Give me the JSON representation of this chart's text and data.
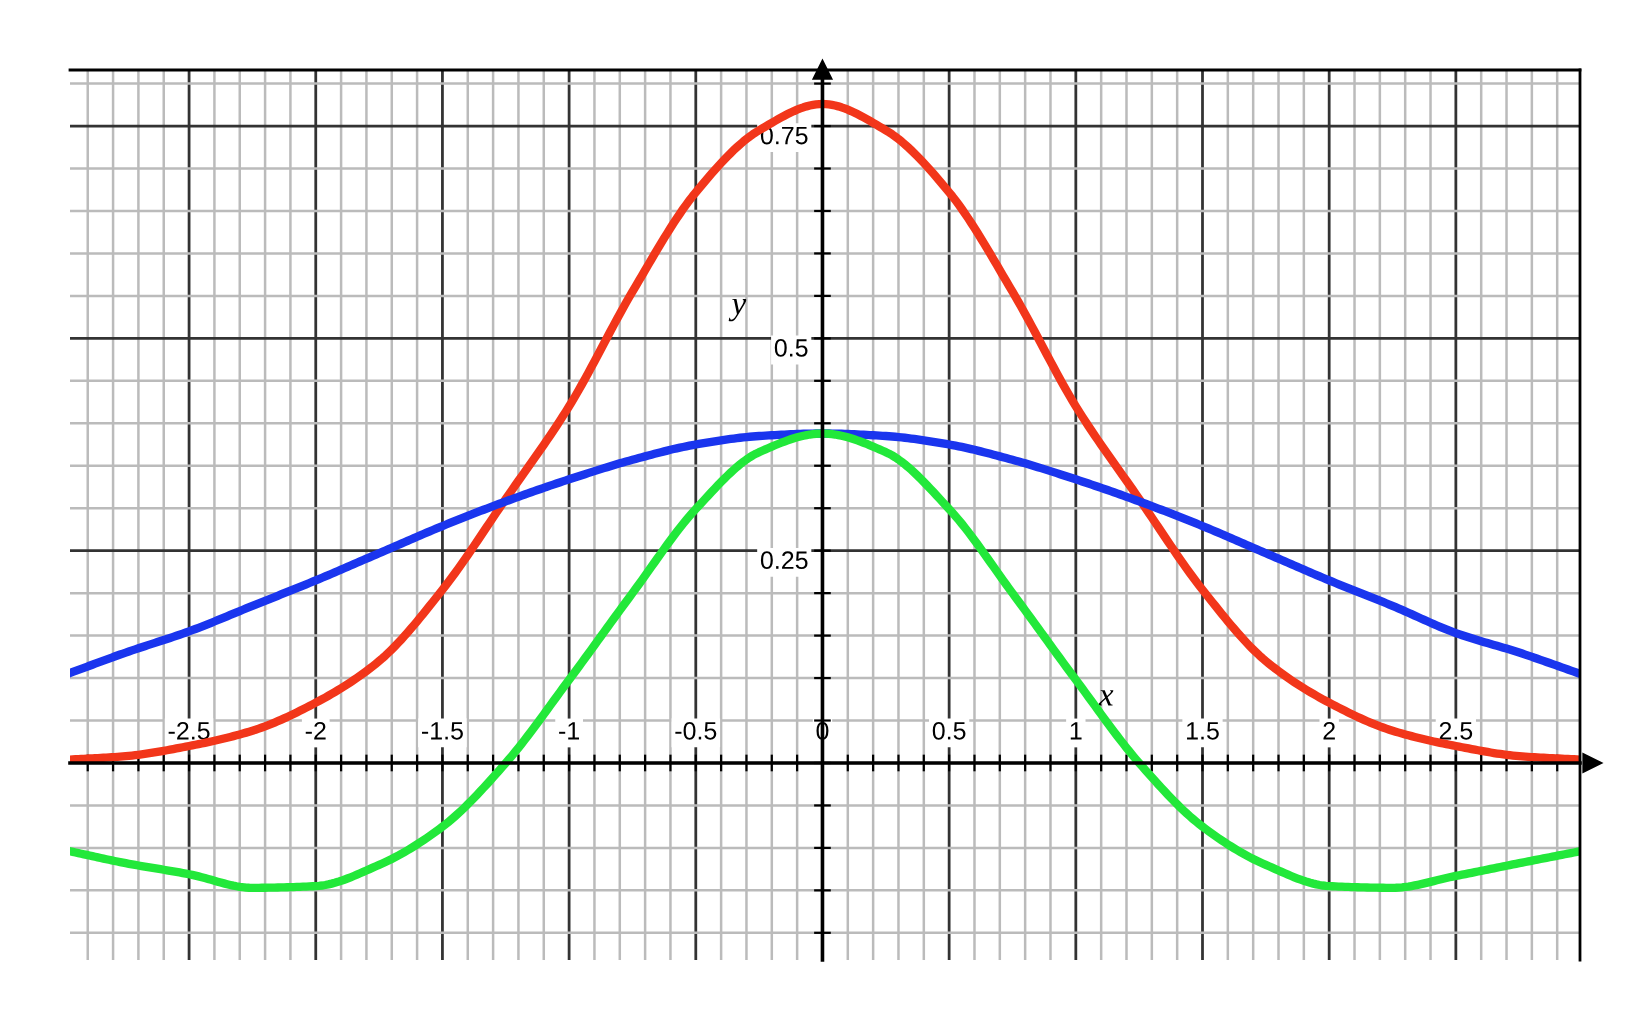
{
  "chart_data": {
    "type": "line",
    "xlabel": "x",
    "ylabel": "y",
    "x": [
      -2.97,
      -2.75,
      -2.5,
      -2.25,
      -2,
      -1.75,
      -1.5,
      -1.25,
      -1,
      -0.75,
      -0.5,
      -0.25,
      0,
      0.25,
      0.5,
      0.75,
      1,
      1.25,
      1.5,
      1.75,
      2,
      2.25,
      2.5,
      2.75,
      2.99
    ],
    "series": [
      {
        "color": "#f2361a",
        "values": [
          0.004,
          0.008,
          0.02,
          0.038,
          0.071,
          0.12,
          0.204,
          0.311,
          0.42,
          0.555,
          0.672,
          0.745,
          0.776,
          0.745,
          0.672,
          0.555,
          0.42,
          0.311,
          0.204,
          0.12,
          0.071,
          0.038,
          0.02,
          0.008,
          0.004
        ]
      },
      {
        "color": "#1a35ee",
        "values": [
          0.106,
          0.13,
          0.155,
          0.185,
          0.215,
          0.247,
          0.279,
          0.308,
          0.334,
          0.357,
          0.375,
          0.385,
          0.388,
          0.385,
          0.375,
          0.357,
          0.334,
          0.308,
          0.279,
          0.247,
          0.215,
          0.185,
          0.153,
          0.13,
          0.105
        ]
      },
      {
        "color": "#22e83a",
        "values": [
          -0.104,
          -0.118,
          -0.131,
          -0.147,
          -0.145,
          -0.12,
          -0.075,
          0,
          0.098,
          0.2,
          0.299,
          0.366,
          0.388,
          0.366,
          0.299,
          0.2,
          0.098,
          0,
          -0.075,
          -0.12,
          -0.145,
          -0.147,
          -0.133,
          -0.118,
          -0.104
        ]
      }
    ],
    "xlim": [
      -2.97,
      2.99
    ],
    "ylim": [
      -0.232,
      0.816
    ],
    "xticks": [
      {
        "value": -2.9,
        "label": null
      },
      {
        "value": -2.8,
        "label": null
      },
      {
        "value": -2.7,
        "label": null
      },
      {
        "value": -2.6,
        "label": null
      },
      -2.5,
      {
        "value": -2.4,
        "label": null
      },
      {
        "value": -2.3,
        "label": null
      },
      {
        "value": -2.2,
        "label": null
      },
      {
        "value": -2.1,
        "label": null
      },
      -2,
      {
        "value": -1.9,
        "label": null
      },
      {
        "value": -1.8,
        "label": null
      },
      {
        "value": -1.7,
        "label": null
      },
      {
        "value": -1.6,
        "label": null
      },
      -1.5,
      {
        "value": -1.4,
        "label": null
      },
      {
        "value": -1.3,
        "label": null
      },
      {
        "value": -1.2,
        "label": null
      },
      {
        "value": -1.1,
        "label": null
      },
      -1,
      {
        "value": -0.9,
        "label": null
      },
      {
        "value": -0.8,
        "label": null
      },
      {
        "value": -0.7,
        "label": null
      },
      {
        "value": -0.6,
        "label": null
      },
      -0.5,
      {
        "value": -0.4,
        "label": null
      },
      {
        "value": -0.3,
        "label": null
      },
      {
        "value": -0.2,
        "label": null
      },
      {
        "value": -0.1,
        "label": null
      },
      0,
      {
        "value": 0.1,
        "label": null
      },
      {
        "value": 0.2,
        "label": null
      },
      {
        "value": 0.3,
        "label": null
      },
      {
        "value": 0.4,
        "label": null
      },
      0.5,
      {
        "value": 0.6,
        "label": null
      },
      {
        "value": 0.7,
        "label": null
      },
      {
        "value": 0.8,
        "label": null
      },
      {
        "value": 0.9,
        "label": null
      },
      1,
      {
        "value": 1.1,
        "label": null
      },
      {
        "value": 1.2,
        "label": null
      },
      {
        "value": 1.3,
        "label": null
      },
      {
        "value": 1.4,
        "label": null
      },
      1.5,
      {
        "value": 1.6,
        "label": null
      },
      {
        "value": 1.7,
        "label": null
      },
      {
        "value": 1.8,
        "label": null
      },
      {
        "value": 1.9,
        "label": null
      },
      2,
      {
        "value": 2.1,
        "label": null
      },
      {
        "value": 2.2,
        "label": null
      },
      {
        "value": 2.3,
        "label": null
      },
      {
        "value": 2.4,
        "label": null
      },
      2.5,
      {
        "value": 2.6,
        "label": null
      },
      {
        "value": 2.7,
        "label": null
      },
      {
        "value": 2.8,
        "label": null
      },
      {
        "value": 2.9,
        "label": null
      }
    ],
    "yticks": [
      {
        "value": -0.2,
        "label": null
      },
      {
        "value": -0.15,
        "label": null
      },
      {
        "value": -0.1,
        "label": null
      },
      {
        "value": -0.05,
        "label": null
      },
      {
        "value": 0,
        "label": null
      },
      {
        "value": 0.05,
        "label": null
      },
      {
        "value": 0.1,
        "label": null
      },
      {
        "value": 0.15,
        "label": null
      },
      {
        "value": 0.2,
        "label": null
      },
      0.25,
      {
        "value": 0.3,
        "label": null
      },
      {
        "value": 0.35,
        "label": null
      },
      {
        "value": 0.4,
        "label": null
      },
      {
        "value": 0.45,
        "label": null
      },
      0.5,
      {
        "value": 0.55,
        "label": null
      },
      {
        "value": 0.6,
        "label": null
      },
      {
        "value": 0.65,
        "label": null
      },
      {
        "value": 0.7,
        "label": null
      },
      0.75,
      {
        "value": 0.8,
        "label": null
      }
    ],
    "grid": true,
    "line_style": "solid",
    "marker": "none"
  }
}
